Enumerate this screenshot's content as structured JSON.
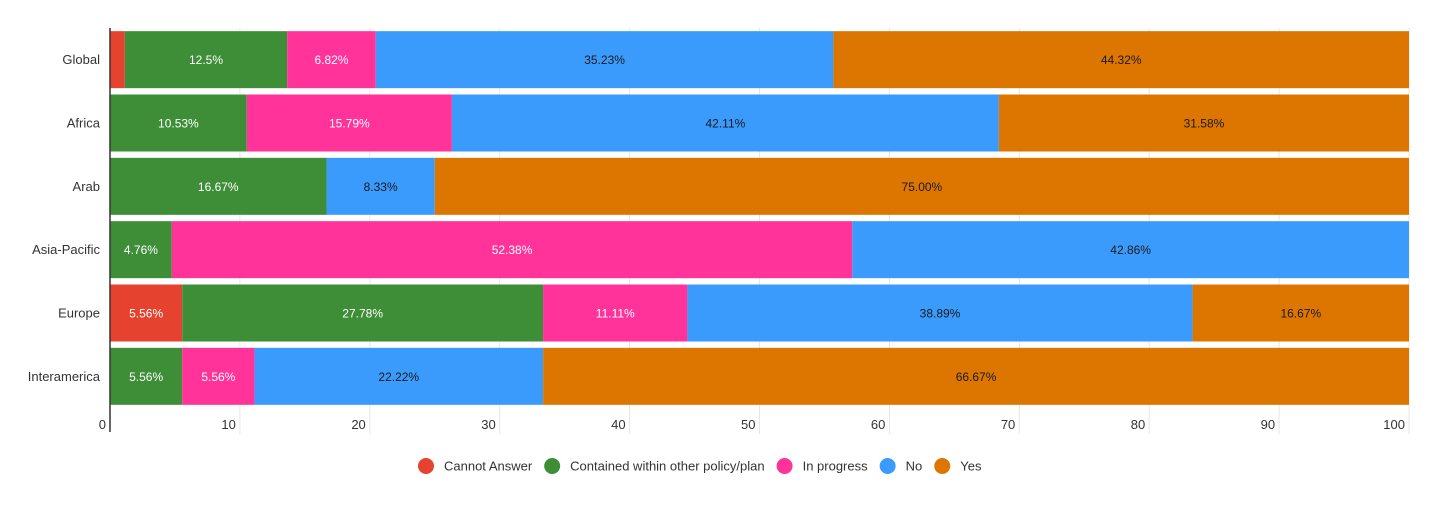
{
  "chart_data": {
    "type": "bar",
    "orientation": "horizontal",
    "stacked": true,
    "categories": [
      "Global",
      "Africa",
      "Arab",
      "Asia-Pacific",
      "Europe",
      "Interamerica"
    ],
    "series": [
      {
        "name": "Cannot Answer",
        "color": "#e5432f",
        "values": [
          1.14,
          0,
          0,
          0,
          5.56,
          0
        ],
        "labels": [
          "",
          "",
          "",
          "",
          "5.56%",
          ""
        ]
      },
      {
        "name": "Contained within other policy/plan",
        "color": "#3e8e37",
        "values": [
          12.5,
          10.53,
          16.67,
          4.76,
          27.78,
          5.56
        ],
        "labels": [
          "12.5%",
          "10.53%",
          "16.67%",
          "4.76%",
          "27.78%",
          "5.56%"
        ]
      },
      {
        "name": "In progress",
        "color": "#ff3399",
        "values": [
          6.82,
          15.79,
          0,
          52.38,
          11.11,
          5.56
        ],
        "labels": [
          "6.82%",
          "15.79%",
          "",
          "52.38%",
          "11.11%",
          "5.56%"
        ]
      },
      {
        "name": "No",
        "color": "#3a9bfc",
        "values": [
          35.23,
          42.11,
          8.33,
          42.86,
          38.89,
          22.22
        ],
        "labels": [
          "35.23%",
          "42.11%",
          "8.33%",
          "42.86%",
          "38.89%",
          "22.22%"
        ]
      },
      {
        "name": "Yes",
        "color": "#dc7600",
        "values": [
          44.32,
          31.58,
          75.0,
          0,
          16.67,
          66.67
        ],
        "labels": [
          "44.32%",
          "31.58%",
          "75.00%",
          "",
          "16.67%",
          "66.67%"
        ]
      }
    ],
    "xlim": [
      0,
      100
    ],
    "xticks": [
      "0",
      "10",
      "20",
      "30",
      "40",
      "50",
      "60",
      "70",
      "80",
      "90",
      "100"
    ],
    "grid": true,
    "legend_position": "bottom"
  }
}
